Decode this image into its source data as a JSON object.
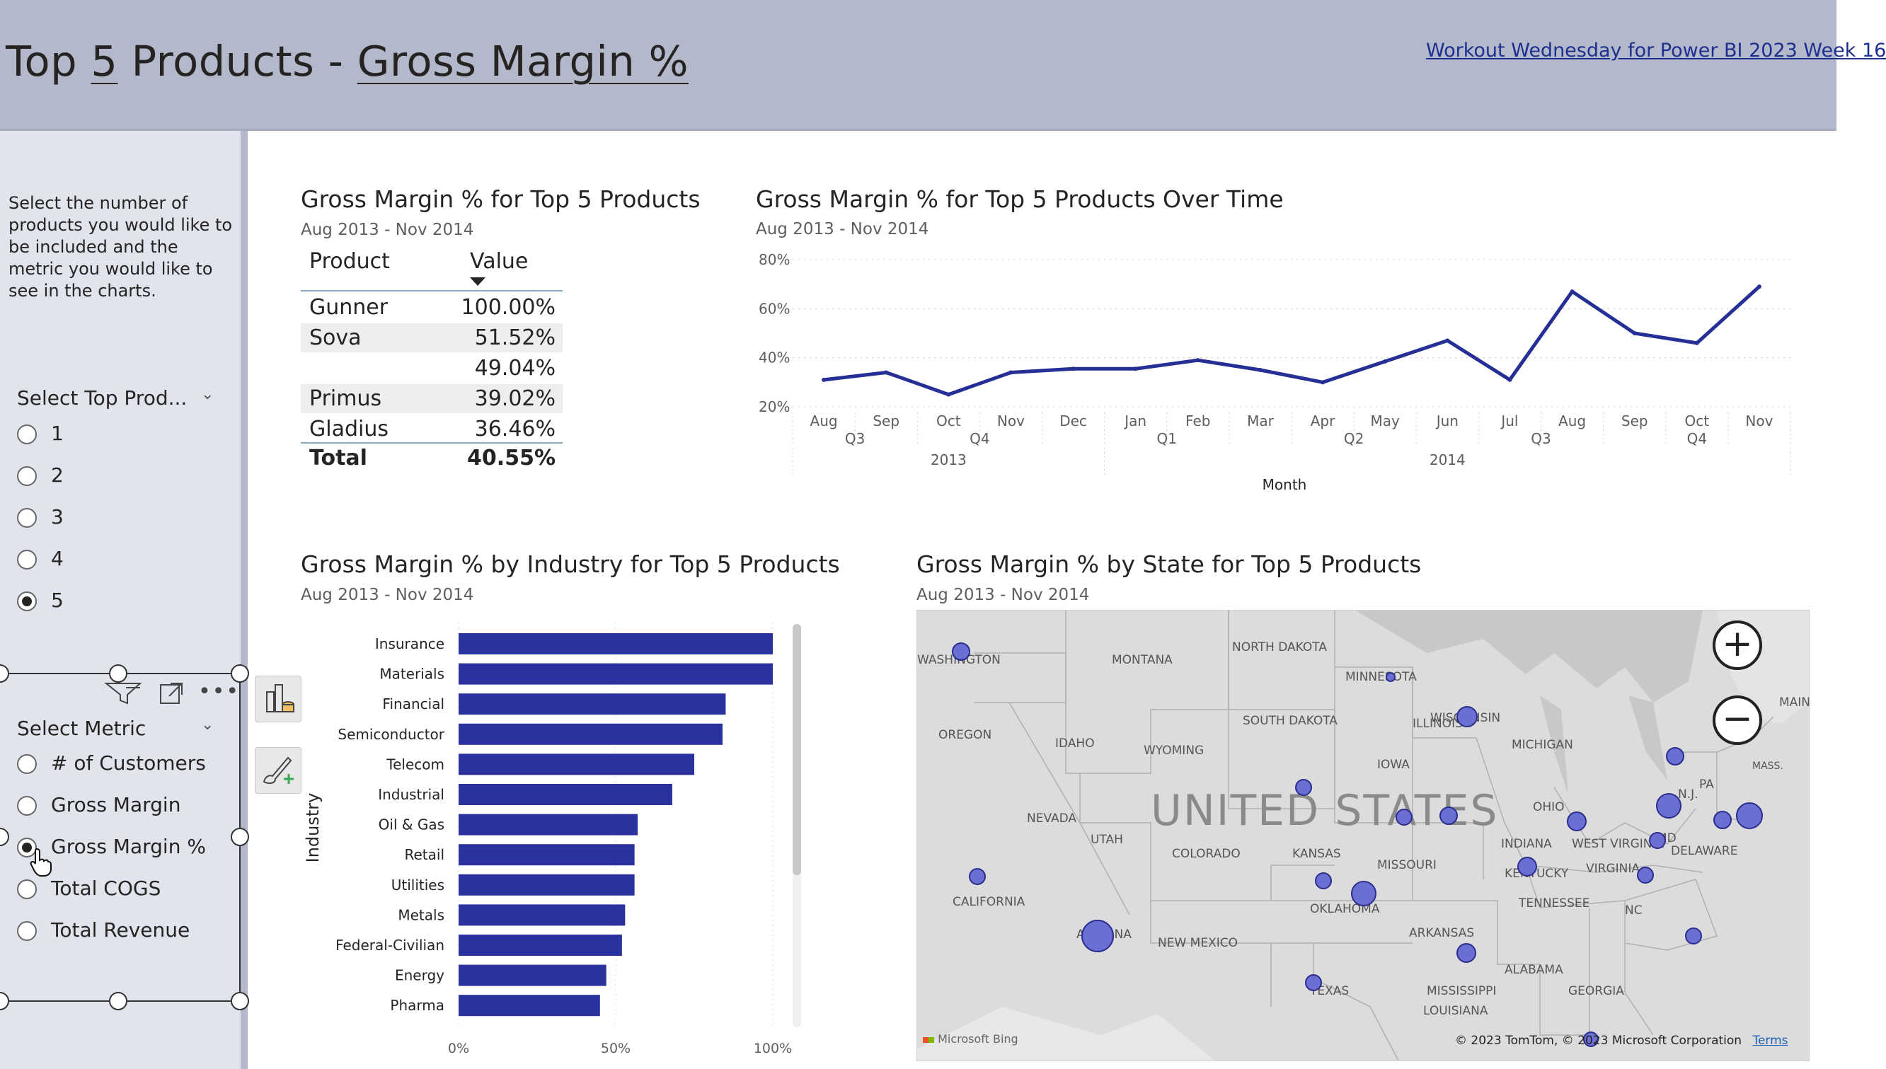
{
  "header": {
    "title_pre": "Top ",
    "title_num": "5",
    "title_mid": " Products - ",
    "title_metric": "Gross Margin %",
    "link": "Workout Wednesday for Power BI 2023 Week 16",
    "background": "#b3b8cb"
  },
  "sidebar": {
    "instructions": "Select the number of products you would like to be included and the metric you would like to see in the charts.",
    "top_products": {
      "label": "Select Top Prod...",
      "options": [
        "1",
        "2",
        "3",
        "4",
        "5"
      ],
      "selected": "5"
    },
    "metric": {
      "label": "Select Metric",
      "options": [
        "# of Customers",
        "Gross Margin",
        "Gross Margin %",
        "Total COGS",
        "Total Revenue"
      ],
      "selected": "Gross Margin %"
    },
    "icons": [
      "filter-icon",
      "focus-mode-icon",
      "more-options-icon",
      "build-visual-icon",
      "format-visual-icon"
    ]
  },
  "table_visual": {
    "title": "Gross Margin % for Top 5 Products",
    "subtitle": "Aug 2013 - Nov 2014",
    "headers": [
      "Product",
      "Value"
    ],
    "rows": [
      {
        "product": "Gunner",
        "value": "100.00%"
      },
      {
        "product": "Sova",
        "value": "51.52%"
      },
      {
        "product": "",
        "value": "49.04%"
      },
      {
        "product": "Primus",
        "value": "39.02%"
      },
      {
        "product": "Gladius",
        "value": "36.46%"
      }
    ],
    "total": {
      "product": "Total",
      "value": "40.55%"
    }
  },
  "line_visual": {
    "title": "Gross Margin % for Top 5 Products Over Time",
    "subtitle": "Aug 2013 - Nov 2014",
    "xlabel": "Month",
    "quarters": [
      {
        "label": "Q3",
        "month": "Aug"
      },
      {
        "label": "Q4",
        "month": "Nov"
      },
      {
        "label": "Q1",
        "month": "Feb"
      },
      {
        "label": "Q2",
        "month": "May"
      },
      {
        "label": "Q3",
        "month": "Aug"
      },
      {
        "label": "Q4",
        "month": "Oct"
      }
    ],
    "years": [
      "2013",
      "2014"
    ]
  },
  "bar_visual": {
    "title": "Gross Margin % by Industry for Top 5 Products",
    "subtitle": "Aug 2013 - Nov 2014"
  },
  "map_visual": {
    "title": "Gross Margin % by State for Top 5 Products",
    "subtitle": "Aug 2013 - Nov 2014",
    "country_label": "UNITED STATES",
    "states": [
      "WASHINGTON",
      "MONTANA",
      "NORTH DAKOTA",
      "MINNESOTA",
      "OREGON",
      "IDAHO",
      "SOUTH DAKOTA",
      "WISCONSIN",
      "WYOMING",
      "MICHIGAN",
      "IOWA",
      "NEVADA",
      "UTAH",
      "COLORADO",
      "KANSAS",
      "MISSOURI",
      "ILLINOIS",
      "INDIANA",
      "OHIO",
      "CALIFORNIA",
      "KENTUCKY",
      "WEST VIRGINIA",
      "VIRGINIA",
      "TENNESSEE",
      "NC",
      "OKLAHOMA",
      "ARIZONA",
      "NEW MEXICO",
      "ARKANSAS",
      "ALABAMA",
      "GEORGIA",
      "MISSISSIPPI",
      "TEXAS",
      "LOUISIANA",
      "MD",
      "DELAWARE",
      "N.J.",
      "PA",
      "MASS.",
      "MAIN"
    ],
    "bing_logo": "Microsoft Bing",
    "copyright": "© 2023 TomTom, © 2023 Microsoft Corporation",
    "terms": "Terms"
  },
  "chart_data": [
    {
      "type": "line",
      "title": "Gross Margin % for Top 5 Products Over Time",
      "xlabel": "Month",
      "x": [
        "Aug",
        "Sep",
        "Oct",
        "Nov",
        "Dec",
        "Jan",
        "Feb",
        "Mar",
        "Apr",
        "May",
        "Jun",
        "Jul",
        "Aug",
        "Sep",
        "Oct",
        "Nov"
      ],
      "values": [
        31,
        34,
        25,
        34,
        35.5,
        35.5,
        39,
        35,
        30,
        38.5,
        47,
        31,
        67,
        50,
        46,
        69
      ],
      "ylim": [
        20,
        80
      ],
      "yticks": [
        "20%",
        "40%",
        "60%",
        "80%"
      ],
      "grid": true,
      "color": "#252f96"
    },
    {
      "type": "bar",
      "title": "Gross Margin % by Industry for Top 5 Products",
      "ylabel": "Industry",
      "categories": [
        "Insurance",
        "Materials",
        "Financial",
        "Semiconductor",
        "Telecom",
        "Industrial",
        "Oil & Gas",
        "Retail",
        "Utilities",
        "Metals",
        "Federal-Civilian",
        "Energy",
        "Pharma"
      ],
      "values": [
        100,
        100,
        85,
        84,
        75,
        68,
        57,
        56,
        56,
        53,
        52,
        47,
        45
      ],
      "xticks": [
        "0%",
        "50%",
        "100%"
      ],
      "xlim": [
        0,
        100
      ],
      "grid": true,
      "color": "#2b32a0"
    }
  ]
}
